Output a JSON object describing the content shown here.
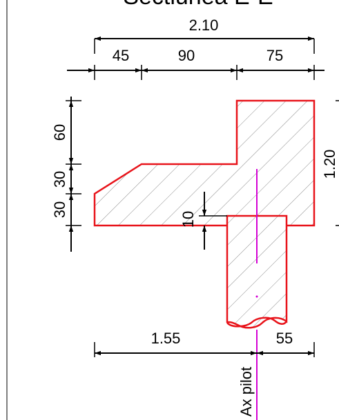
{
  "title": "Sectiunea E-E",
  "colors": {
    "outline": "#e8131a",
    "axis": "#d400d4",
    "dimension": "#000000",
    "hatch": "#8a8a8a"
  },
  "dimensions": {
    "top_total": "2.10",
    "top_left": "45",
    "top_middle": "90",
    "top_right": "75",
    "left_top": "60",
    "left_middle": "30",
    "left_bottom": "30",
    "right_height": "1.20",
    "gap": "10",
    "bottom_left": "1.55",
    "bottom_right": "55"
  },
  "labels": {
    "pile_axis": "Ax pilot"
  }
}
